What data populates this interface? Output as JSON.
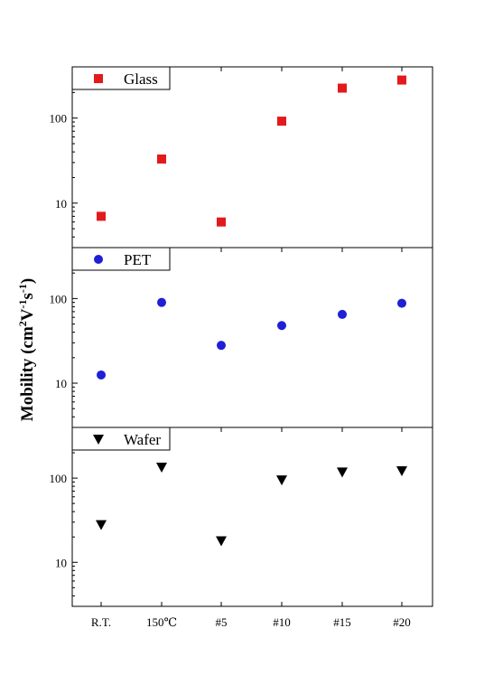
{
  "chart_data": {
    "type": "scatter",
    "ylabel": "Mobility (cm²V⁻¹s⁻¹)",
    "ylabel_parts": [
      "Mobility (cm",
      "2",
      "V",
      "-1",
      "s",
      "-1",
      ")"
    ],
    "xlabel": "",
    "categories": [
      "R.T.",
      "150℃",
      "#5",
      "#10",
      "#15",
      "#20"
    ],
    "y_scale": "log",
    "ylim": [
      3,
      400
    ],
    "y_ticks": [
      10,
      100
    ],
    "y_tick_labels": [
      "10",
      "100"
    ],
    "grid": false,
    "legend_placement": "top-left",
    "panels": [
      {
        "series": {
          "name": "Glass",
          "marker": "square",
          "color": "#e31a1c",
          "values": [
            7,
            33,
            6,
            92,
            225,
            280
          ]
        }
      },
      {
        "series": {
          "name": "PET",
          "marker": "circle",
          "color": "#1f1fd6",
          "values": [
            12.5,
            90,
            28,
            48,
            65,
            88
          ]
        }
      },
      {
        "series": {
          "name": "Wafer",
          "marker": "triangle-down",
          "color": "#000000",
          "values": [
            28,
            135,
            18,
            95,
            118,
            122
          ]
        }
      }
    ]
  }
}
